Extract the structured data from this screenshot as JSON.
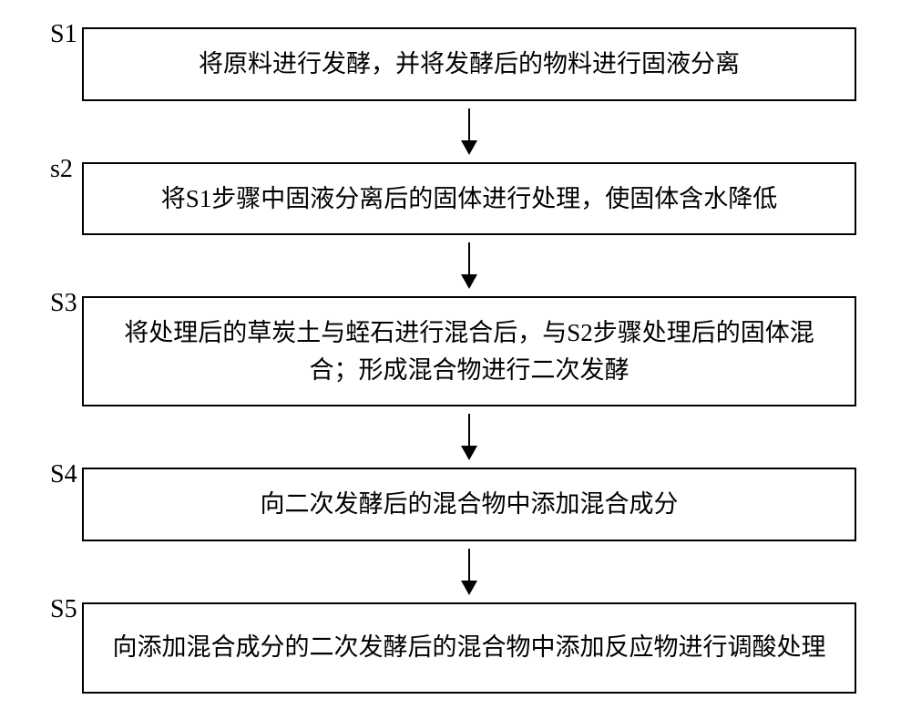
{
  "flowchart": {
    "type": "flowchart",
    "background_color": "#ffffff",
    "box_border_color": "#000000",
    "box_border_width": 2,
    "text_color": "#000000",
    "label_fontsize": 28,
    "text_fontsize": 27,
    "arrow_color": "#000000",
    "steps": [
      {
        "label": "S1",
        "text": "将原料进行发酵，并将发酵后的物料进行固液分离",
        "multi_line": false
      },
      {
        "label": "s2",
        "text": "将S1步骤中固液分离后的固体进行处理，使固体含水降低",
        "multi_line": false
      },
      {
        "label": "S3",
        "text": "将处理后的草炭土与蛭石进行混合后，与S2步骤处理后的固体混合；形成混合物进行二次发酵",
        "multi_line": true
      },
      {
        "label": "S4",
        "text": "向二次发酵后的混合物中添加混合成分",
        "multi_line": false
      },
      {
        "label": "S5",
        "text": "向添加混合成分的二次发酵后的混合物中添加反应物进行调酸处理",
        "multi_line": true
      }
    ]
  }
}
